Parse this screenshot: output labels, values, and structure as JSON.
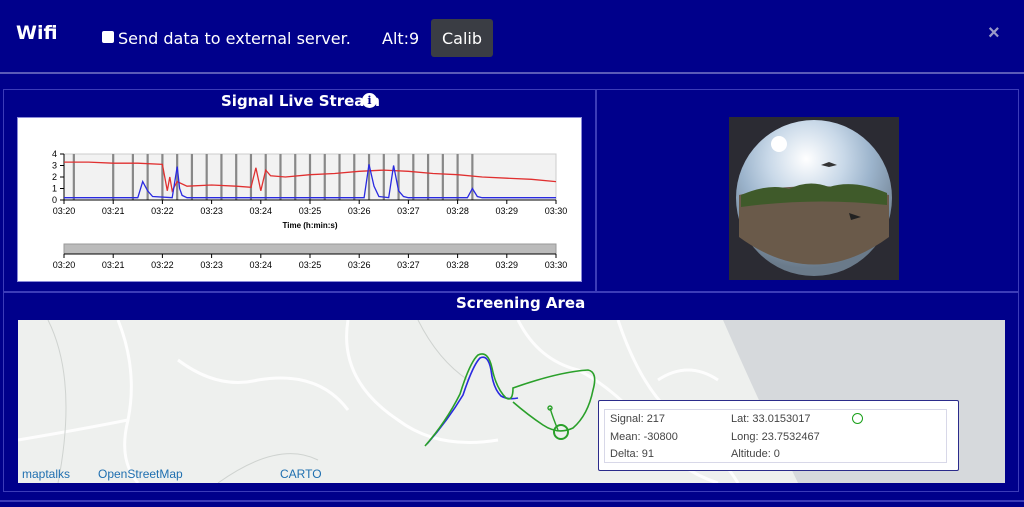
{
  "header": {
    "title": "Wifi",
    "send_label": "Send data to external server.",
    "alt_label": "Alt:9",
    "calib_label": "Calib",
    "close_icon": "×"
  },
  "stream": {
    "title": "Signal Live Stream",
    "info_icon": "i"
  },
  "screening": {
    "title": "Screening Area"
  },
  "map": {
    "attribution": [
      "maptalks",
      "OpenStreetMap",
      "CARTO"
    ]
  },
  "info": {
    "signal": "Signal: 217",
    "mean": "Mean: -30800",
    "delta": "Delta: 91",
    "lat": "Lat: 33.0153017",
    "long": "Long: 23.7532467",
    "altitude": "Altitude: 0"
  },
  "colors": {
    "bg": "#00008b",
    "red_series": "#e03030",
    "blue_series": "#2a2ae0",
    "green_track": "#2aa02a",
    "status": "#1aa01a"
  },
  "chart_data": {
    "type": "line",
    "title": "",
    "xlabel": "Time (h:min:s)",
    "ylabel": "",
    "x_ticks": [
      "03:20",
      "03:21",
      "03:22",
      "03:23",
      "03:24",
      "03:25",
      "03:26",
      "03:27",
      "03:28",
      "03:29",
      "03:30"
    ],
    "y_ticks": [
      0,
      1,
      2,
      3,
      4
    ],
    "ylim": [
      0,
      4
    ],
    "grid": false,
    "series": [
      {
        "color": "#e03030",
        "x": [
          0.0,
          0.5,
          1.0,
          1.5,
          2.0,
          2.1,
          2.15,
          2.2,
          2.3,
          2.5,
          3.0,
          3.5,
          3.8,
          3.9,
          4.0,
          4.1,
          4.2,
          4.5,
          5.0,
          5.5,
          6.0,
          6.5,
          7.0,
          7.5,
          8.0,
          8.5,
          9.0,
          9.5,
          10.0
        ],
        "y": [
          3.3,
          3.3,
          3.2,
          3.2,
          3.1,
          0.8,
          2.0,
          0.8,
          1.6,
          1.2,
          1.3,
          1.2,
          1.1,
          2.8,
          0.8,
          2.6,
          2.1,
          2.0,
          2.2,
          2.3,
          2.5,
          2.6,
          2.5,
          2.3,
          2.2,
          2.0,
          1.9,
          1.8,
          1.6
        ]
      },
      {
        "color": "#2a2ae0",
        "x": [
          0.0,
          1.5,
          1.6,
          1.7,
          1.8,
          2.2,
          2.3,
          2.35,
          2.4,
          2.5,
          3.0,
          3.8,
          4.0,
          6.1,
          6.2,
          6.3,
          6.4,
          6.6,
          6.7,
          6.8,
          6.9,
          7.0,
          8.2,
          8.3,
          8.4,
          8.5,
          10.0
        ],
        "y": [
          0.2,
          0.2,
          1.6,
          0.8,
          0.3,
          0.2,
          2.9,
          1.0,
          0.4,
          0.2,
          0.2,
          0.2,
          0.2,
          0.2,
          3.1,
          1.2,
          0.3,
          0.2,
          3.0,
          0.8,
          0.3,
          0.2,
          0.2,
          1.0,
          0.3,
          0.2,
          0.2
        ]
      }
    ]
  }
}
